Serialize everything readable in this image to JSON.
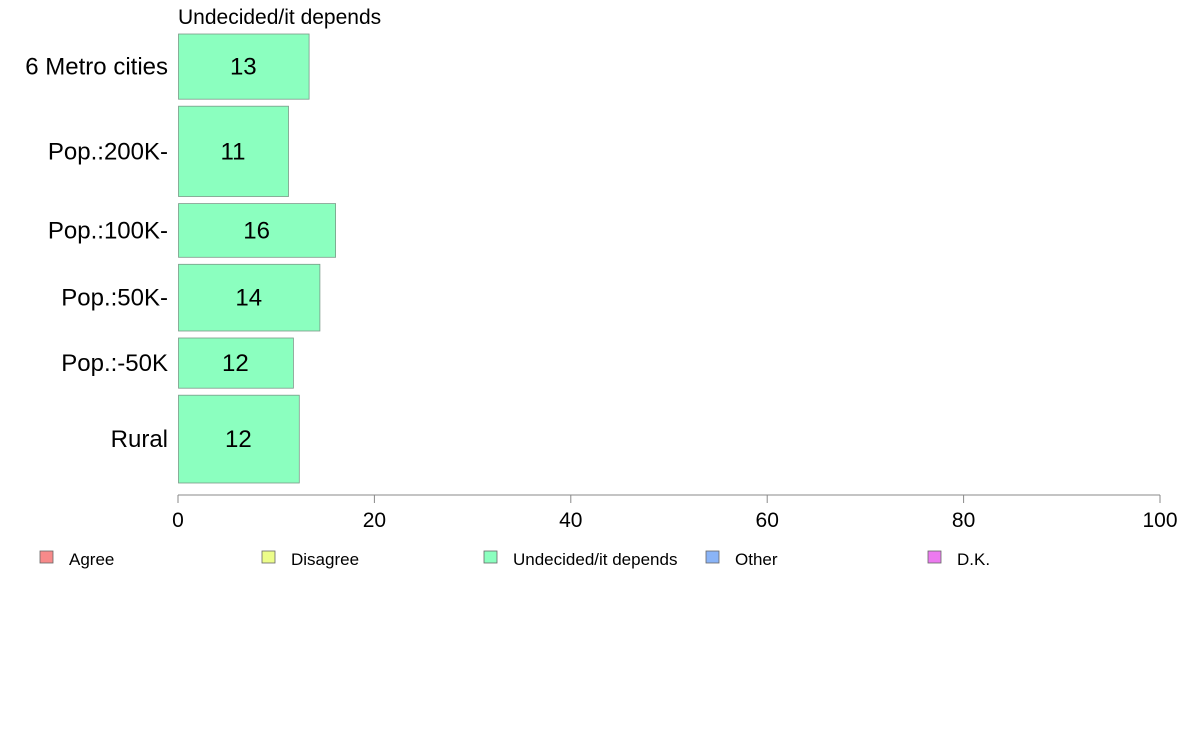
{
  "chart_data": {
    "type": "bar",
    "orientation": "horizontal",
    "title": "Undecided/it depends",
    "categories": [
      "6 Metro cities",
      "Pop.:200K-",
      "Pop.:100K-",
      "Pop.:50K-",
      "Pop.:-50K",
      "Rural"
    ],
    "series": [
      {
        "name": "Undecided/it depends",
        "values": [
          13,
          11,
          16,
          14,
          12,
          12
        ],
        "value_labels": [
          "13",
          "11",
          "16",
          "14",
          "12",
          "12"
        ],
        "color": "#8bffbf"
      }
    ],
    "xlim": [
      0,
      100
    ],
    "xticks": [
      0,
      20,
      40,
      60,
      80,
      100
    ],
    "xtick_labels": [
      "0",
      "20",
      "40",
      "60",
      "80",
      "100"
    ],
    "category_weights": [
      1.3,
      1.8,
      1.07,
      1.33,
      1.0,
      1.75
    ],
    "bar_precise_values": [
      13.3,
      11.2,
      16.0,
      14.4,
      11.7,
      12.3
    ],
    "grid": false,
    "legend": {
      "placement": "bottom",
      "items": [
        {
          "label": "Agree",
          "color": "#f78a8a"
        },
        {
          "label": "Disagree",
          "color": "#ecfd8a"
        },
        {
          "label": "Undecided/it depends",
          "color": "#8bffbf"
        },
        {
          "label": "Other",
          "color": "#8ab4f7"
        },
        {
          "label": "D.K.",
          "color": "#ec7aef"
        }
      ]
    }
  }
}
